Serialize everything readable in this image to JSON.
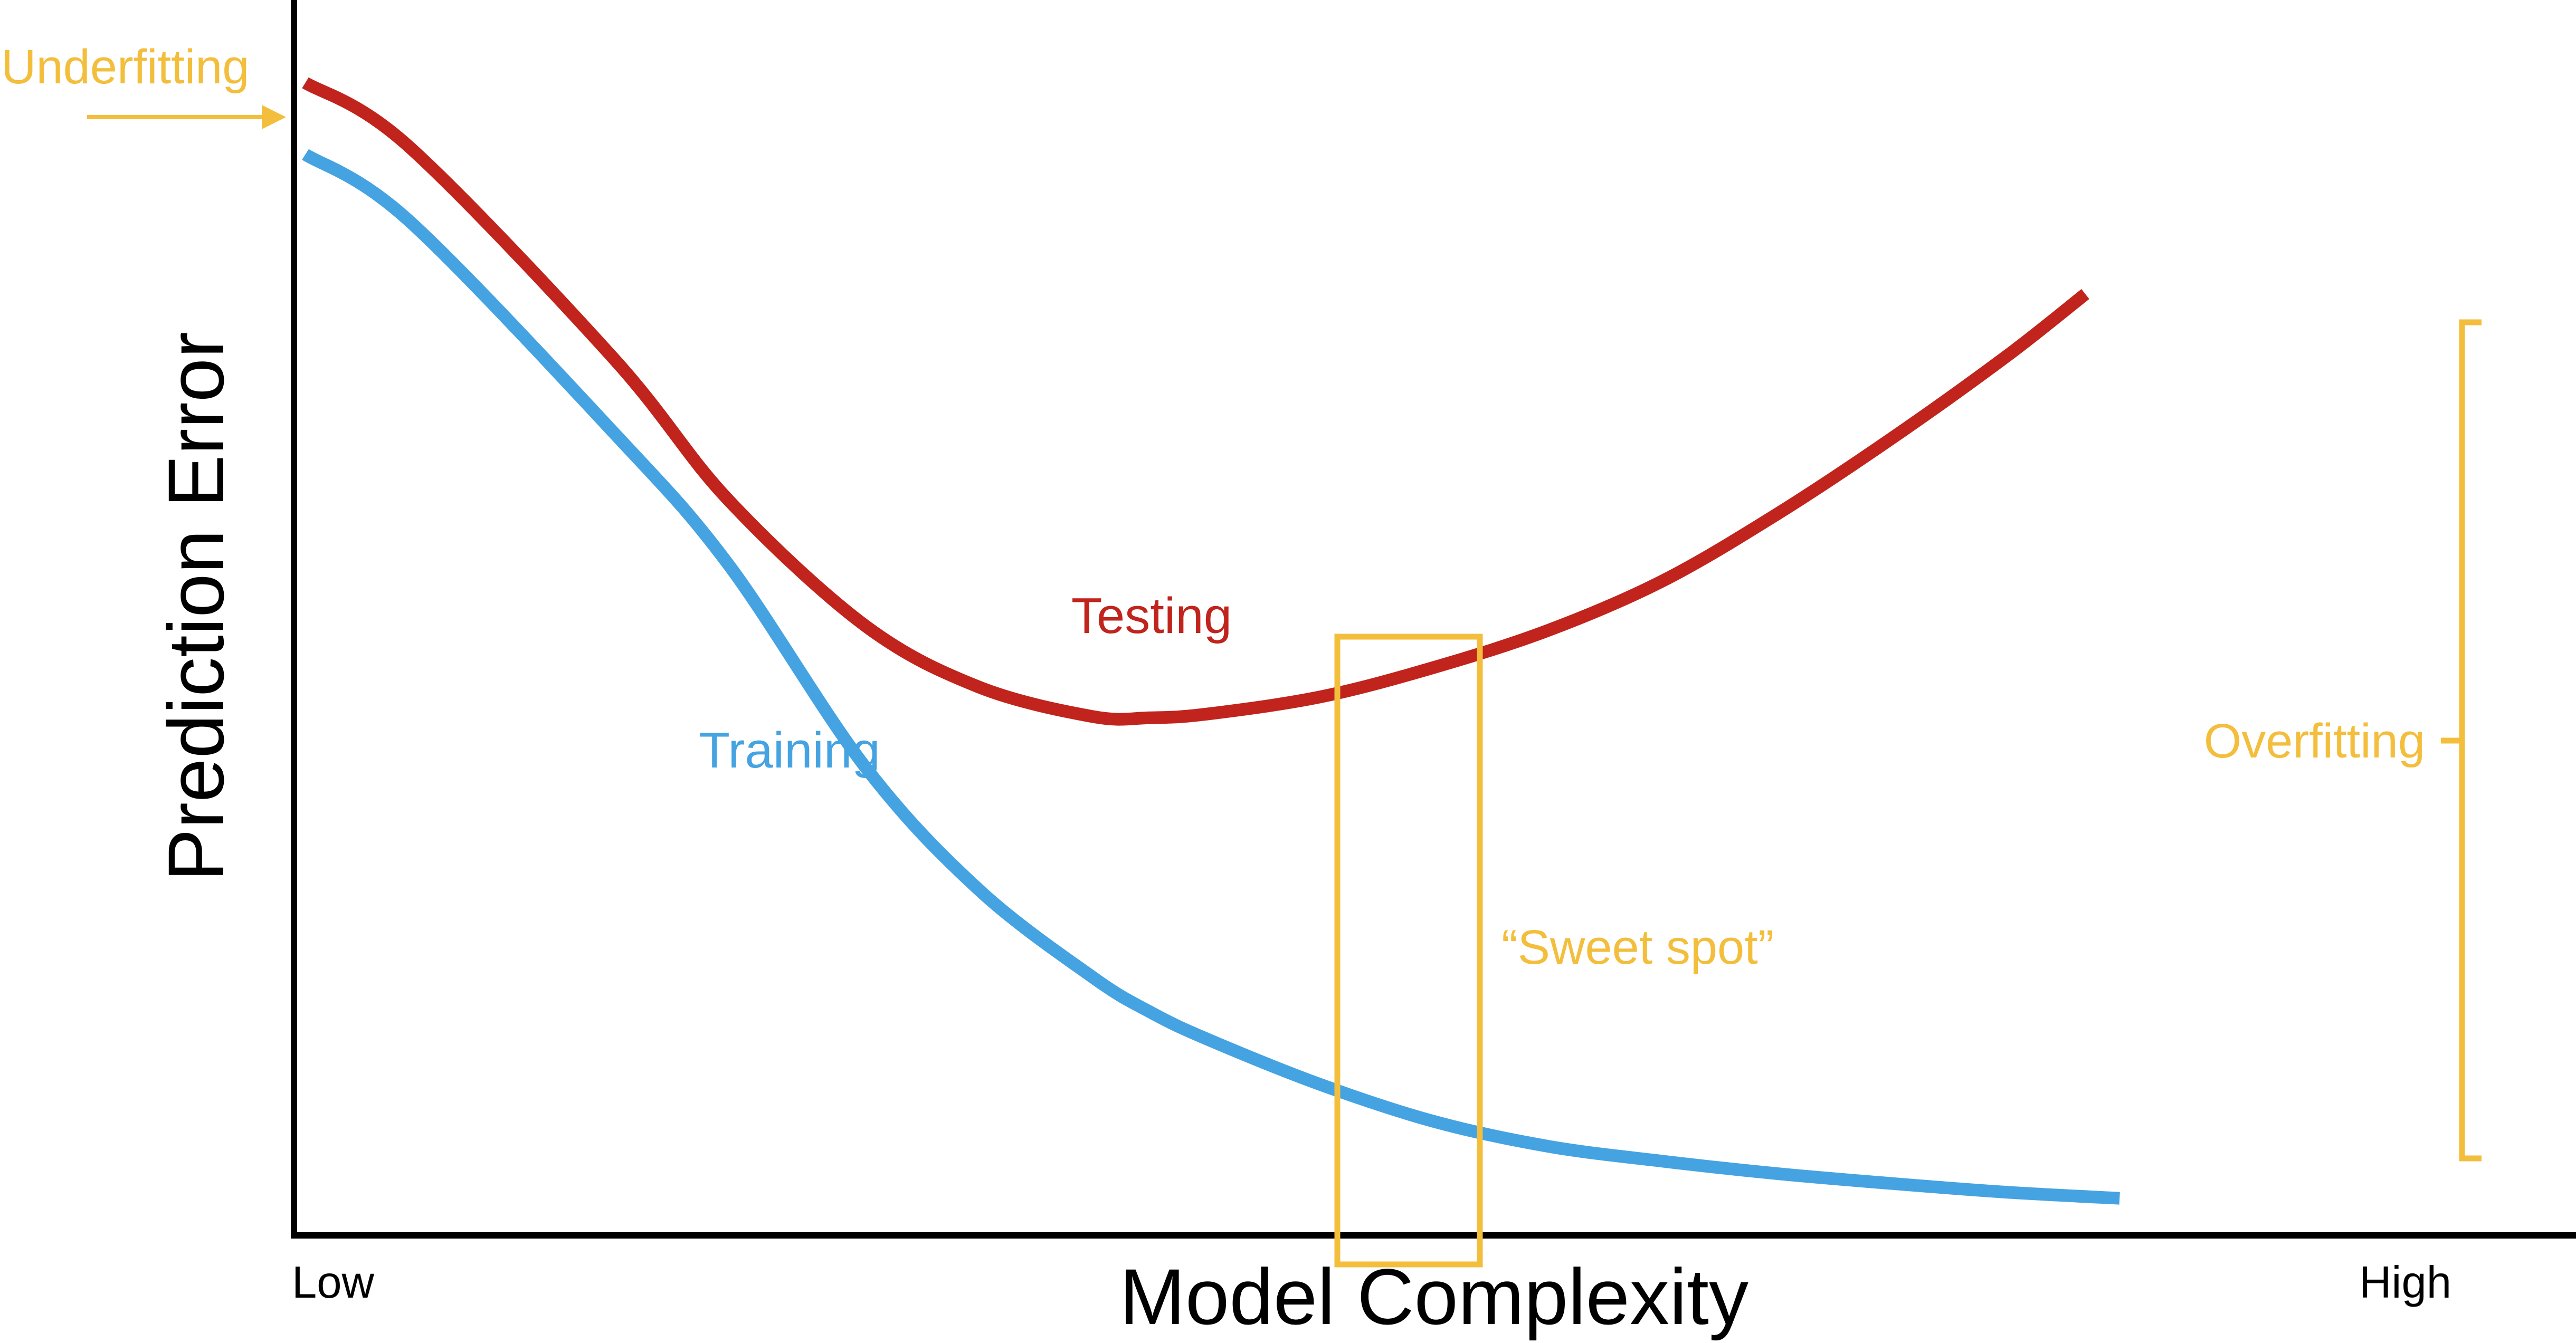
{
  "chart_data": {
    "type": "line",
    "title": "",
    "xlabel": "Model Complexity",
    "ylabel": "Prediction Error",
    "x_tick_labels": [
      "Low",
      "High"
    ],
    "grid": false,
    "series": [
      {
        "name": "Testing",
        "color": "#c0241c",
        "points": [
          [
            0.005,
            0.933
          ],
          [
            0.05,
            0.882
          ],
          [
            0.14,
            0.71
          ],
          [
            0.19,
            0.596
          ],
          [
            0.25,
            0.494
          ],
          [
            0.3,
            0.444
          ],
          [
            0.35,
            0.42
          ],
          [
            0.375,
            0.419
          ],
          [
            0.4,
            0.422
          ],
          [
            0.45,
            0.436
          ],
          [
            0.5,
            0.46
          ],
          [
            0.55,
            0.49
          ],
          [
            0.6,
            0.53
          ],
          [
            0.65,
            0.584
          ],
          [
            0.7,
            0.645
          ],
          [
            0.75,
            0.711
          ],
          [
            0.785,
            0.762
          ]
        ]
      },
      {
        "name": "Training",
        "color": "#45a3e2",
        "points": [
          [
            0.005,
            0.875
          ],
          [
            0.05,
            0.822
          ],
          [
            0.14,
            0.65
          ],
          [
            0.19,
            0.544
          ],
          [
            0.25,
            0.38
          ],
          [
            0.3,
            0.28
          ],
          [
            0.35,
            0.209
          ],
          [
            0.375,
            0.181
          ],
          [
            0.4,
            0.159
          ],
          [
            0.45,
            0.122
          ],
          [
            0.5,
            0.092
          ],
          [
            0.55,
            0.072
          ],
          [
            0.6,
            0.06
          ],
          [
            0.65,
            0.05
          ],
          [
            0.7,
            0.042
          ],
          [
            0.75,
            0.035
          ],
          [
            0.8,
            0.03
          ]
        ]
      }
    ],
    "annotations": {
      "underfitting": "Underfitting",
      "sweet_spot": "“Sweet spot”",
      "overfitting": "Overfitting"
    },
    "annotation_color": "#f3be3c",
    "axis_color": "#000000"
  }
}
